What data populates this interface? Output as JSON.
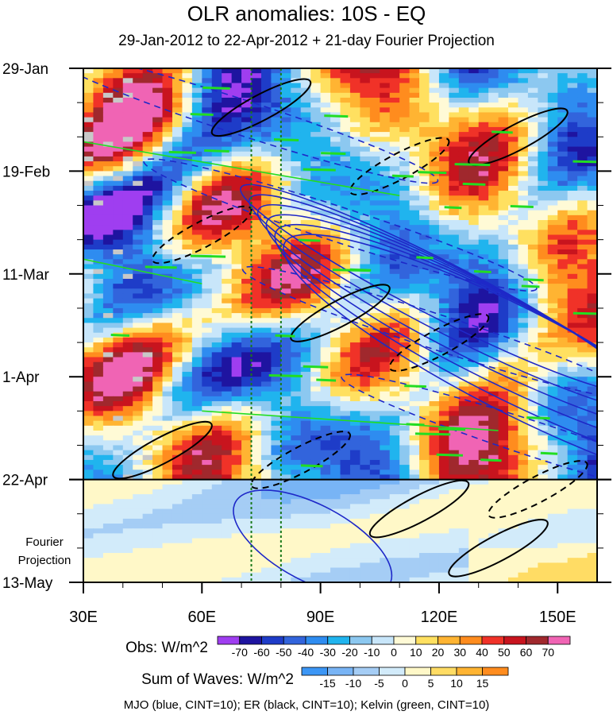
{
  "chart_data": {
    "type": "heatmap",
    "title": "OLR anomalies: 10S - EQ",
    "subtitle": "29-Jan-2012 to 22-Apr-2012 + 21-day Fourier Projection",
    "x": {
      "range": [
        30,
        160
      ],
      "ticks": [
        30,
        60,
        90,
        120,
        150
      ],
      "tick_labels": [
        "30E",
        "60E",
        "90E",
        "120E",
        "150E"
      ]
    },
    "y": {
      "range_days": [
        0,
        105
      ],
      "ticks": [
        0,
        21,
        42,
        63,
        84,
        105
      ],
      "tick_labels": [
        "29-Jan",
        "19-Feb",
        "11-Mar",
        "1-Apr",
        "22-Apr",
        "13-May"
      ],
      "projection_start_day": 84
    },
    "projection_label": [
      "Fourier",
      "Projection"
    ],
    "reference_lines_lon": [
      72.5,
      80
    ],
    "obs_colorbar": {
      "title": "Obs: W/m^2",
      "levels": [
        -70,
        -60,
        -50,
        -40,
        -30,
        -20,
        -10,
        0,
        10,
        20,
        30,
        40,
        50,
        60,
        70
      ],
      "labels": [
        "-70",
        "-60",
        "-50",
        "-40",
        "-30",
        "-20",
        "-10",
        "0",
        "10",
        "20",
        "30",
        "40",
        "50",
        "60",
        "70"
      ],
      "colors": [
        "#9f3ef0",
        "#1e14a0",
        "#1e3cc8",
        "#3264dc",
        "#2e8cf0",
        "#20b4ee",
        "#8cc8f0",
        "#c8e6fa",
        "#fffad6",
        "#ffe060",
        "#ffb432",
        "#ff8c1e",
        "#f03228",
        "#c8141e",
        "#a0282d",
        "#f064b4"
      ]
    },
    "waves_colorbar": {
      "title": "Sum of Waves: W/m^2",
      "levels": [
        -15,
        -10,
        -5,
        0,
        5,
        10,
        15
      ],
      "labels": [
        "-15",
        "-10",
        "-5",
        "0",
        "5",
        "10",
        "15"
      ],
      "colors": [
        "#3c96f5",
        "#78b4f5",
        "#a5cdf5",
        "#d2ebfa",
        "#fff8c8",
        "#ffdc64",
        "#ffb432",
        "#ff8c1e"
      ]
    },
    "footnote": "MJO (blue, CINT=10); ER (black, CINT=10); Kelvin (green, CINT=10)"
  }
}
